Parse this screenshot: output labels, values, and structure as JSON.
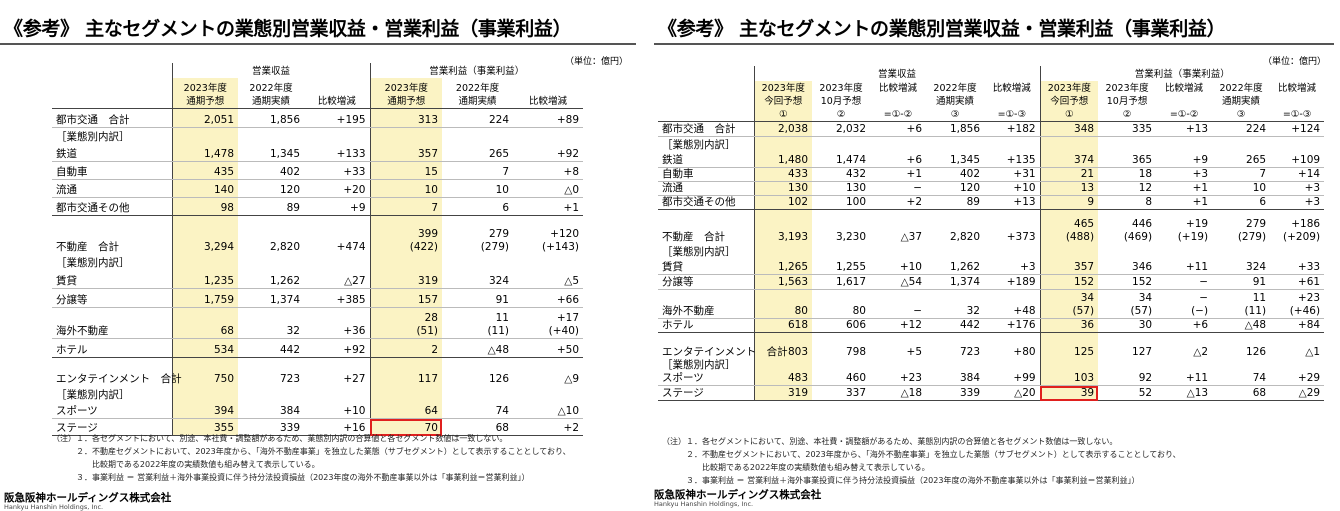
{
  "left": {
    "title": "《参考》 主なセグメントの業態別営業収益・営業利益（事業利益）",
    "unit": "（単位：億円）",
    "group1": "営業収益",
    "group2": "営業利益（事業利益）",
    "headers": [
      "2023年度\n通期予想",
      "2022年度\n通期実績",
      "比較増減",
      "2023年度\n通期予想",
      "2022年度\n通期実績",
      "比較増減"
    ],
    "rows": [
      [
        "都市交通　合計",
        "2,051",
        "1,856",
        "+195",
        "313",
        "224",
        "+89"
      ],
      [
        "［業態別内訳］",
        "",
        "",
        "",
        "",
        "",
        ""
      ],
      [
        "鉄道",
        "1,478",
        "1,345",
        "+133",
        "357",
        "265",
        "+92"
      ],
      [
        "自動車",
        "435",
        "402",
        "+33",
        "15",
        "7",
        "+8"
      ],
      [
        "流通",
        "140",
        "120",
        "+20",
        "10",
        "10",
        "△0"
      ],
      [
        "都市交通その他",
        "98",
        "89",
        "+9",
        "7",
        "6",
        "+1"
      ],
      [
        "不動産　合計",
        "3,294",
        "2,820",
        "+474",
        "399\n(422)",
        "279\n(279)",
        "+120\n(+143)"
      ],
      [
        "［業態別内訳］",
        "",
        "",
        "",
        "",
        "",
        ""
      ],
      [
        "賃貸",
        "1,235",
        "1,262",
        "△27",
        "319",
        "324",
        "△5"
      ],
      [
        "分譲等",
        "1,759",
        "1,374",
        "+385",
        "157",
        "91",
        "+66"
      ],
      [
        "海外不動産",
        "68",
        "32",
        "+36",
        "28\n(51)",
        "11\n(11)",
        "+17\n(+40)"
      ],
      [
        "ホテル",
        "534",
        "442",
        "+92",
        "2",
        "△48",
        "+50"
      ],
      [
        "エンタテインメント　合計",
        "750",
        "723",
        "+27",
        "117",
        "126",
        "△9"
      ],
      [
        "［業態別内訳］",
        "",
        "",
        "",
        "",
        "",
        ""
      ],
      [
        "スポーツ",
        "394",
        "384",
        "+10",
        "64",
        "74",
        "△10"
      ],
      [
        "ステージ",
        "355",
        "339",
        "+16",
        "70",
        "68",
        "+2"
      ]
    ],
    "notes": [
      "（注）１．各セグメントにおいて、別途、本社費・調整額があるため、業態別内訳の合算値と各セグメント数値は一致しない。",
      "　　　２．不動産セグメントにおいて、2023年度から、「海外不動産事業」を独立した業態（サブセグメント）として表示することとしており、",
      "　　　　　比較期である2022年度の実績数値も組み替えて表示している。",
      "　　　３．事業利益 ＝ 営業利益＋海外事業投資に伴う持分法投資損益（2023年度の海外不動産事業以外は「事業利益＝営業利益」）"
    ],
    "company": "阪急阪神ホールディングス株式会社",
    "company_en": "Hankyu Hanshin Holdings, Inc."
  },
  "right": {
    "title": "《参考》 主なセグメントの業態別営業収益・営業利益（事業利益）",
    "unit": "（単位：億円）",
    "group1": "営業収益",
    "group2": "営業利益（事業利益）",
    "headers": [
      "2023年度\n今回予想\n①",
      "2023年度\n10月予想\n②",
      "比較増減\n\n=①-②",
      "2022年度\n通期実績\n③",
      "比較増減\n\n=①-③",
      "2023年度\n今回予想\n①",
      "2023年度\n10月予想\n②",
      "比較増減\n\n=①-②",
      "2022年度\n通期実績\n③",
      "比較増減\n\n=①-③"
    ],
    "rows": [
      [
        "都市交通　合計",
        "2,038",
        "2,032",
        "+6",
        "1,856",
        "+182",
        "348",
        "335",
        "+13",
        "224",
        "+124"
      ],
      [
        "［業態別内訳］",
        "",
        "",
        "",
        "",
        "",
        "",
        "",
        "",
        "",
        ""
      ],
      [
        "鉄道",
        "1,480",
        "1,474",
        "+6",
        "1,345",
        "+135",
        "374",
        "365",
        "+9",
        "265",
        "+109"
      ],
      [
        "自動車",
        "433",
        "432",
        "+1",
        "402",
        "+31",
        "21",
        "18",
        "+3",
        "7",
        "+14"
      ],
      [
        "流通",
        "130",
        "130",
        "−",
        "120",
        "+10",
        "13",
        "12",
        "+1",
        "10",
        "+3"
      ],
      [
        "都市交通その他",
        "102",
        "100",
        "+2",
        "89",
        "+13",
        "9",
        "8",
        "+1",
        "6",
        "+3"
      ],
      [
        "不動産　合計",
        "3,193",
        "3,230",
        "△37",
        "2,820",
        "+373",
        "465\n(488)",
        "446\n(469)",
        "+19\n(+19)",
        "279\n(279)",
        "+186\n(+209)"
      ],
      [
        "［業態別内訳］",
        "",
        "",
        "",
        "",
        "",
        "",
        "",
        "",
        "",
        ""
      ],
      [
        "賃貸",
        "1,265",
        "1,255",
        "+10",
        "1,262",
        "+3",
        "357",
        "346",
        "+11",
        "324",
        "+33"
      ],
      [
        "分譲等",
        "1,563",
        "1,617",
        "△54",
        "1,374",
        "+189",
        "152",
        "152",
        "−",
        "91",
        "+61"
      ],
      [
        "海外不動産",
        "80",
        "80",
        "−",
        "32",
        "+48",
        "34\n(57)",
        "34\n(57)",
        "−\n(−)",
        "11\n(11)",
        "+23\n(+46)"
      ],
      [
        "ホテル",
        "618",
        "606",
        "+12",
        "442",
        "+176",
        "36",
        "30",
        "+6",
        "△48",
        "+84"
      ],
      [
        "エンタテインメント　合計",
        "803",
        "798",
        "+5",
        "723",
        "+80",
        "125",
        "127",
        "△2",
        "126",
        "△1"
      ],
      [
        "［業態別内訳］",
        "",
        "",
        "",
        "",
        "",
        "",
        "",
        "",
        "",
        ""
      ],
      [
        "スポーツ",
        "483",
        "460",
        "+23",
        "384",
        "+99",
        "103",
        "92",
        "+11",
        "74",
        "+29"
      ],
      [
        "ステージ",
        "319",
        "337",
        "△18",
        "339",
        "△20",
        "39",
        "52",
        "△13",
        "68",
        "△29"
      ]
    ],
    "notes": [
      "（注）１．各セグメントにおいて、別途、本社費・調整額があるため、業態別内訳の合算値と各セグメント数値は一致しない。",
      "　　　２．不動産セグメントにおいて、2023年度から、「海外不動産事業」を独立した業態（サブセグメント）として表示することとしており、",
      "　　　　　比較期である2022年度の実績数値も組み替えて表示している。",
      "　　　３．事業利益 ＝ 営業利益＋海外事業投資に伴う持分法投資損益（2023年度の海外不動産事業以外は「事業利益＝営業利益」）"
    ],
    "company": "阪急阪神ホールディングス株式会社",
    "company_en": "Hankyu Hanshin Holdings, Inc."
  }
}
